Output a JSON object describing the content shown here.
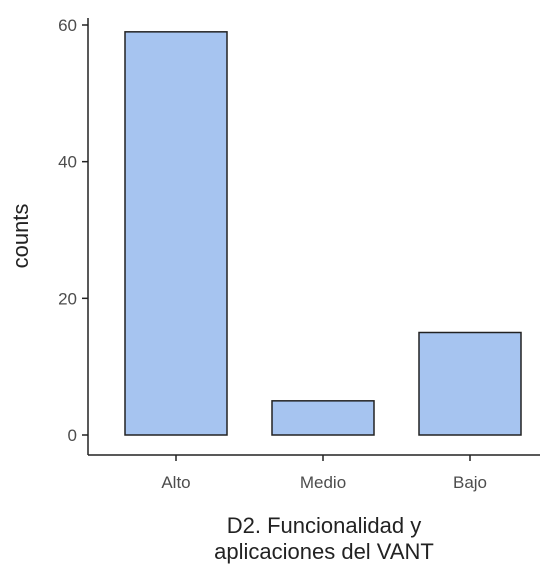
{
  "chart_data": {
    "type": "bar",
    "categories": [
      "Alto",
      "Medio",
      "Bajo"
    ],
    "values": [
      59,
      5,
      15
    ],
    "xlabel_lines": [
      "D2. Funcionalidad y",
      "aplicaciones del VANT"
    ],
    "ylabel": "counts",
    "ylim": [
      0,
      61
    ],
    "yticks": [
      0,
      20,
      40,
      60
    ],
    "grid": false,
    "bar_color": "#a6c4f0",
    "edge_color": "#222222"
  }
}
